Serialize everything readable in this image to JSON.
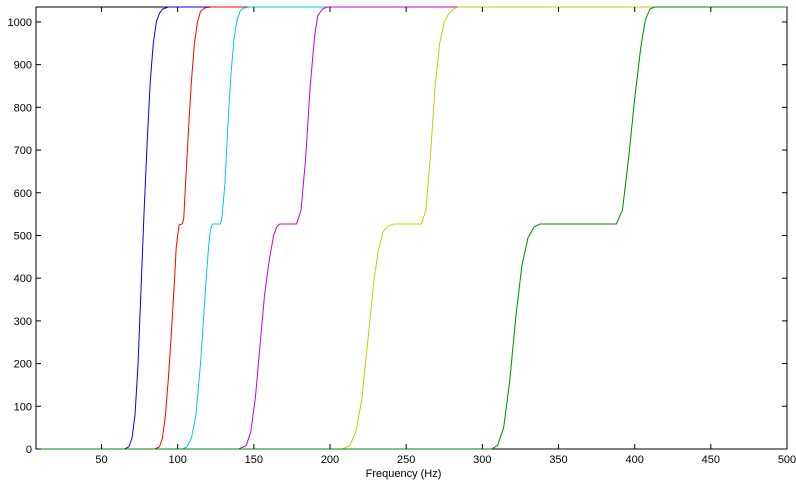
{
  "chart_data": {
    "type": "line",
    "title": "",
    "xlabel": "Frequency (Hz)",
    "ylabel": "",
    "xlim": [
      7,
      500
    ],
    "ylim": [
      0,
      1035
    ],
    "xticks": [
      50,
      100,
      150,
      200,
      250,
      300,
      350,
      400,
      450,
      500
    ],
    "yticks": [
      0,
      100,
      200,
      300,
      400,
      500,
      600,
      700,
      800,
      900,
      1000
    ],
    "grid": false,
    "legend": "none",
    "series": [
      {
        "color": "#0000ff",
        "x": [
          7,
          65,
          68,
          70,
          72,
          74,
          76,
          78,
          80,
          82,
          84,
          86,
          88,
          90,
          94,
          100,
          500
        ],
        "y": [
          0,
          0,
          5,
          25,
          80,
          200,
          380,
          560,
          720,
          860,
          950,
          1000,
          1020,
          1030,
          1035,
          1035,
          1035
        ]
      },
      {
        "color": "#ff0000",
        "x": [
          7,
          85,
          88,
          90,
          92,
          94,
          96,
          98,
          99,
          100,
          101,
          103,
          104,
          105,
          107,
          109,
          111,
          113,
          115,
          118,
          122,
          500
        ],
        "y": [
          0,
          0,
          5,
          25,
          80,
          170,
          280,
          400,
          470,
          500,
          525,
          527,
          540,
          610,
          740,
          860,
          950,
          1000,
          1025,
          1033,
          1035,
          1035
        ]
      },
      {
        "color": "#00cccc",
        "x": [
          7,
          103,
          106,
          109,
          112,
          115,
          118,
          120,
          121,
          122,
          123,
          128,
          129,
          131,
          133,
          135,
          137,
          139,
          141,
          143,
          147,
          500
        ],
        "y": [
          0,
          0,
          5,
          25,
          80,
          200,
          360,
          460,
          500,
          520,
          527,
          527,
          540,
          620,
          760,
          880,
          960,
          1005,
          1025,
          1032,
          1035,
          1035
        ]
      },
      {
        "color": "#cc00cc",
        "x": [
          7,
          140,
          145,
          148,
          151,
          154,
          157,
          160,
          163,
          165,
          167,
          178,
          181,
          184,
          187,
          190,
          192,
          195,
          198,
          500
        ],
        "y": [
          0,
          0,
          8,
          40,
          120,
          240,
          360,
          440,
          500,
          520,
          527,
          527,
          560,
          680,
          850,
          970,
          1015,
          1030,
          1035,
          1035
        ]
      },
      {
        "color": "#cccc00",
        "x": [
          7,
          208,
          213,
          217,
          221,
          225,
          229,
          232,
          235,
          238,
          242,
          260,
          263,
          266,
          269,
          272,
          275,
          278,
          281,
          284,
          500
        ],
        "y": [
          0,
          0,
          8,
          40,
          120,
          260,
          400,
          470,
          510,
          522,
          527,
          527,
          560,
          690,
          850,
          950,
          1000,
          1020,
          1030,
          1035,
          1035
        ]
      },
      {
        "color": "#008800",
        "x": [
          7,
          306,
          310,
          314,
          318,
          322,
          326,
          330,
          334,
          338,
          345,
          388,
          392,
          396,
          400,
          404,
          407,
          410,
          413,
          500
        ],
        "y": [
          0,
          0,
          8,
          50,
          160,
          310,
          430,
          495,
          520,
          527,
          527,
          527,
          560,
          680,
          820,
          940,
          1005,
          1030,
          1035,
          1035
        ]
      }
    ]
  }
}
